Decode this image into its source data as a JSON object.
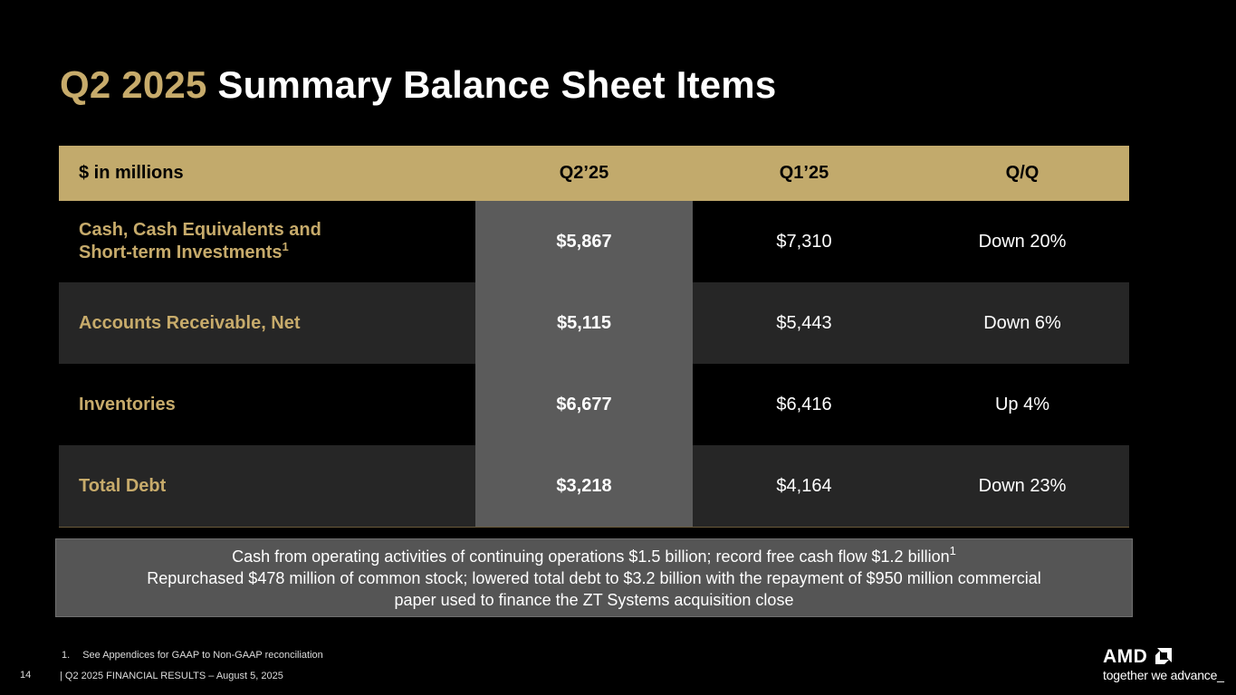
{
  "slide": {
    "title_accent": "Q2 2025",
    "title_main": "Summary Balance Sheet Items"
  },
  "table": {
    "headers": [
      "$ in millions",
      "Q2’25",
      "Q1’25",
      "Q/Q"
    ],
    "rows": [
      {
        "label": "Cash, Cash Equivalents and",
        "label_line2": "Short-term Investments",
        "footnote_ref": "1",
        "q2_25": "$5,867",
        "q1_25": "$7,310",
        "qq": "Down 20%"
      },
      {
        "label": "Accounts Receivable, Net",
        "q2_25": "$5,115",
        "q1_25": "$5,443",
        "qq": "Down 6%"
      },
      {
        "label": "Inventories",
        "q2_25": "$6,677",
        "q1_25": "$6,416",
        "qq": "Up 4%"
      },
      {
        "label": "Total Debt",
        "q2_25": "$3,218",
        "q1_25": "$4,164",
        "qq": "Down 23%"
      }
    ]
  },
  "callout": {
    "line1": "Cash from operating activities of continuing operations $1.5 billion; record free cash flow $1.2 billion",
    "line1_ref": "1",
    "line2": "Repurchased $478 million of common stock; lowered total debt to $3.2 billion with the repayment of  $950 million commercial",
    "line3": "paper used to finance the ZT Systems acquisition close"
  },
  "footer": {
    "note_number": "1.",
    "note_text": "See Appendices for GAAP to Non-GAAP reconciliation",
    "page_number": "14",
    "doc_line": "|  Q2 2025 FINANCIAL RESULTS – August 5, 2025",
    "logo_text": "AMD",
    "tagline": "together we advance_"
  },
  "colors": {
    "accent_gold": "#c7ab6b",
    "header_band": "#c2aa6c",
    "highlight_column": "#5b5b5b",
    "alt_row": "#262626",
    "callout_bg": "#555555"
  }
}
